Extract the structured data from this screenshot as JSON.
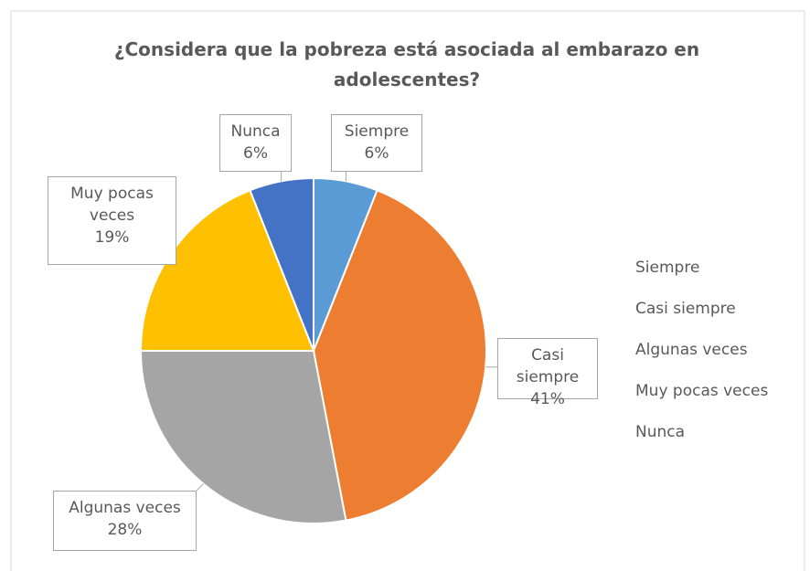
{
  "chart_data": {
    "type": "pie",
    "title": "¿Considera que la pobreza está asociada al embarazo en adolescentes?",
    "categories": [
      "Siempre",
      "Casi siempre",
      "Algunas veces",
      "Muy pocas veces",
      "Nunca"
    ],
    "values": [
      6,
      41,
      28,
      19,
      6
    ],
    "value_labels": [
      "6%",
      "41%",
      "28%",
      "19%",
      "6%"
    ],
    "colors": [
      "#5b9bd5",
      "#ed7d31",
      "#a5a5a5",
      "#ffc000",
      "#4472c4"
    ],
    "legend": "right"
  }
}
